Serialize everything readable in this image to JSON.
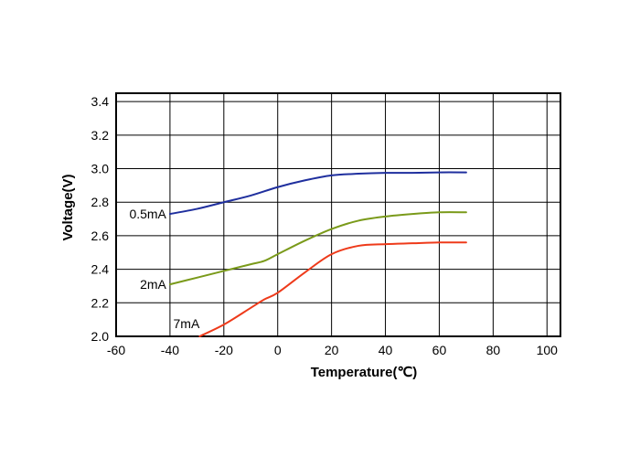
{
  "chart_data": {
    "type": "line",
    "title": "",
    "xlabel": "Temperature(℃)",
    "ylabel": "Voltage(V)",
    "xlim": [
      -60,
      105
    ],
    "ylim": [
      2.0,
      3.45
    ],
    "xticks": [
      -60,
      -40,
      -20,
      0,
      20,
      40,
      60,
      80,
      100
    ],
    "yticks": [
      2.0,
      2.2,
      2.4,
      2.6,
      2.8,
      3.0,
      3.2,
      3.4
    ],
    "xtick_labels": [
      "-60",
      "-40",
      "-20",
      "0",
      "20",
      "40",
      "60",
      "80",
      "100"
    ],
    "ytick_labels": [
      "2.0",
      "2.2",
      "2.4",
      "2.6",
      "2.8",
      "3.0",
      "3.2",
      "3.4"
    ],
    "grid": true,
    "series": [
      {
        "name": "0.5mA",
        "color": "#1f2f9e",
        "x": [
          -40,
          -30,
          -20,
          -10,
          0,
          10,
          20,
          30,
          40,
          50,
          60,
          70
        ],
        "y": [
          2.73,
          2.76,
          2.8,
          2.84,
          2.89,
          2.93,
          2.96,
          2.97,
          2.975,
          2.975,
          2.978,
          2.978
        ]
      },
      {
        "name": "2mA",
        "color": "#7a9a1a",
        "x": [
          -40,
          -30,
          -20,
          -10,
          -5,
          0,
          10,
          20,
          30,
          40,
          50,
          60,
          70
        ],
        "y": [
          2.31,
          2.35,
          2.39,
          2.43,
          2.45,
          2.49,
          2.57,
          2.64,
          2.69,
          2.715,
          2.73,
          2.74,
          2.74
        ]
      },
      {
        "name": "7mA",
        "color": "#ee3a1a",
        "x": [
          -29,
          -20,
          -10,
          -5,
          0,
          10,
          20,
          30,
          40,
          50,
          60,
          70
        ],
        "y": [
          2.0,
          2.07,
          2.17,
          2.22,
          2.26,
          2.38,
          2.49,
          2.54,
          2.55,
          2.555,
          2.56,
          2.56
        ]
      }
    ]
  }
}
